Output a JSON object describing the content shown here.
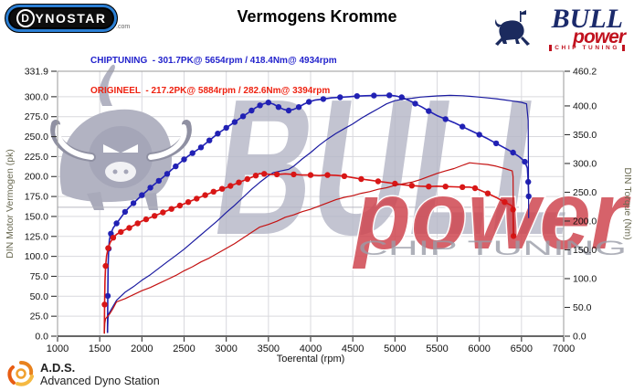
{
  "header": {
    "dynostar": {
      "d": "D",
      "rest": "YNOSTAR",
      "suffix": ".com"
    },
    "title": "Vermogens Kromme",
    "legend": [
      {
        "label": "CHIPTUNING  - 301.7PK@ 5654rpm / 418.4Nm@ 4934rpm",
        "color": "#2222cc"
      },
      {
        "label": "ORIGINEEL  - 217.2PK@ 5884rpm / 282.6Nm@ 3394rpm",
        "color": "#ee2211"
      }
    ],
    "bullpower": {
      "line1": "BULL",
      "line2": "power",
      "line3": "CHIP TUNING"
    }
  },
  "footer": {
    "ads_abbr": "A.D.S.",
    "ads_name": "Advanced Dyno Station"
  },
  "chart_data": {
    "type": "line",
    "title": "Vermogens Kromme",
    "xlabel": "Toerental (rpm)",
    "ylabel_left": "DIN Motor Vermogen (pk)",
    "ylabel_right": "DIN Torque (Nm)",
    "x_range": [
      1000,
      7000
    ],
    "x_ticks": [
      1000,
      1500,
      2000,
      2500,
      3000,
      3500,
      4000,
      4500,
      5000,
      5500,
      6000,
      6500,
      7000
    ],
    "y_left_range": [
      0,
      331.9
    ],
    "y_left_ticks": [
      0,
      25,
      50,
      75,
      100,
      125,
      150,
      175,
      200,
      225,
      250,
      275,
      300,
      331.9
    ],
    "y_right_range": [
      0,
      460.2
    ],
    "y_right_ticks": [
      0,
      50,
      100,
      150,
      200,
      250,
      300,
      350,
      400,
      460.2
    ],
    "grid": true,
    "grid_color": "#d9d9de",
    "watermarks": {
      "big_text": "BULL",
      "script_text": "power",
      "sub_text": "CHIP TUNING"
    },
    "peaks": {
      "chiptuning": {
        "power_pk": 301.7,
        "power_rpm": 5654,
        "torque_nm": 418.4,
        "torque_rpm": 4934
      },
      "origineel": {
        "power_pk": 217.2,
        "power_rpm": 5884,
        "torque_nm": 282.6,
        "torque_rpm": 3394
      }
    },
    "series": [
      {
        "name": "chiptuning-torque",
        "axis": "right",
        "color": "#2121b4",
        "width": 1.6,
        "markers": true,
        "points": [
          [
            1592,
            6
          ],
          [
            1596,
            70
          ],
          [
            1600,
            125
          ],
          [
            1606,
            152
          ],
          [
            1615,
            168
          ],
          [
            1632,
            178
          ],
          [
            1660,
            188
          ],
          [
            1700,
            196
          ],
          [
            1750,
            206
          ],
          [
            1800,
            216
          ],
          [
            1850,
            224
          ],
          [
            1900,
            231
          ],
          [
            1950,
            238
          ],
          [
            2000,
            245
          ],
          [
            2050,
            251
          ],
          [
            2100,
            258
          ],
          [
            2150,
            264
          ],
          [
            2200,
            270
          ],
          [
            2250,
            276
          ],
          [
            2300,
            282
          ],
          [
            2350,
            289
          ],
          [
            2400,
            295
          ],
          [
            2450,
            301
          ],
          [
            2500,
            307
          ],
          [
            2550,
            313
          ],
          [
            2600,
            318
          ],
          [
            2650,
            323
          ],
          [
            2700,
            328
          ],
          [
            2750,
            334
          ],
          [
            2800,
            340
          ],
          [
            2850,
            346
          ],
          [
            2900,
            352
          ],
          [
            2950,
            357
          ],
          [
            3000,
            362
          ],
          [
            3050,
            367
          ],
          [
            3100,
            372
          ],
          [
            3150,
            377
          ],
          [
            3200,
            382
          ],
          [
            3250,
            387
          ],
          [
            3300,
            392
          ],
          [
            3350,
            397
          ],
          [
            3400,
            401
          ],
          [
            3450,
            404
          ],
          [
            3500,
            406
          ],
          [
            3560,
            403
          ],
          [
            3620,
            398
          ],
          [
            3680,
            394
          ],
          [
            3740,
            392
          ],
          [
            3800,
            394
          ],
          [
            3860,
            398
          ],
          [
            3920,
            403
          ],
          [
            3980,
            407
          ],
          [
            4050,
            410
          ],
          [
            4150,
            412
          ],
          [
            4250,
            414
          ],
          [
            4350,
            415
          ],
          [
            4450,
            416
          ],
          [
            4550,
            417
          ],
          [
            4650,
            417.6
          ],
          [
            4750,
            418
          ],
          [
            4850,
            418.2
          ],
          [
            4934,
            418.4
          ],
          [
            5000,
            417.5
          ],
          [
            5080,
            415
          ],
          [
            5160,
            410
          ],
          [
            5240,
            404
          ],
          [
            5320,
            398
          ],
          [
            5400,
            391
          ],
          [
            5500,
            383
          ],
          [
            5600,
            377
          ],
          [
            5700,
            371
          ],
          [
            5800,
            364
          ],
          [
            5900,
            357
          ],
          [
            6000,
            350
          ],
          [
            6100,
            343
          ],
          [
            6200,
            335
          ],
          [
            6300,
            327
          ],
          [
            6400,
            319
          ],
          [
            6480,
            311
          ],
          [
            6540,
            303
          ],
          [
            6570,
            292
          ],
          [
            6580,
            268
          ],
          [
            6585,
            243
          ]
        ]
      },
      {
        "name": "chiptuning-power",
        "axis": "left",
        "color": "#1a1aa0",
        "width": 1.2,
        "markers": false,
        "points": [
          [
            1592,
            4
          ],
          [
            1598,
            22
          ],
          [
            1606,
            28
          ],
          [
            1650,
            36
          ],
          [
            1700,
            45
          ],
          [
            1800,
            55
          ],
          [
            1900,
            62
          ],
          [
            2000,
            70
          ],
          [
            2100,
            77
          ],
          [
            2200,
            85
          ],
          [
            2300,
            93
          ],
          [
            2400,
            101
          ],
          [
            2500,
            109
          ],
          [
            2600,
            118
          ],
          [
            2700,
            127
          ],
          [
            2800,
            136
          ],
          [
            2900,
            145
          ],
          [
            3000,
            155
          ],
          [
            3100,
            164
          ],
          [
            3200,
            174
          ],
          [
            3300,
            184
          ],
          [
            3400,
            193
          ],
          [
            3500,
            201
          ],
          [
            3560,
            205
          ],
          [
            3650,
            207
          ],
          [
            3740,
            209
          ],
          [
            3800,
            213
          ],
          [
            3900,
            222
          ],
          [
            4000,
            230
          ],
          [
            4100,
            239
          ],
          [
            4200,
            247
          ],
          [
            4300,
            254
          ],
          [
            4400,
            260
          ],
          [
            4500,
            266
          ],
          [
            4600,
            273
          ],
          [
            4700,
            279
          ],
          [
            4800,
            285
          ],
          [
            4900,
            291
          ],
          [
            5000,
            295
          ],
          [
            5100,
            297
          ],
          [
            5200,
            298
          ],
          [
            5300,
            299.5
          ],
          [
            5400,
            300.3
          ],
          [
            5500,
            301
          ],
          [
            5654,
            301.7
          ],
          [
            5800,
            301.2
          ],
          [
            5900,
            300.4
          ],
          [
            6000,
            299.5
          ],
          [
            6100,
            298.5
          ],
          [
            6200,
            297.5
          ],
          [
            6300,
            296
          ],
          [
            6400,
            294.5
          ],
          [
            6500,
            293
          ],
          [
            6560,
            291
          ],
          [
            6580,
            270
          ],
          [
            6585,
            148
          ]
        ]
      },
      {
        "name": "origineel-torque",
        "axis": "right",
        "color": "#d81616",
        "width": 1.6,
        "markers": true,
        "points": [
          [
            1555,
            5
          ],
          [
            1558,
            55
          ],
          [
            1562,
            95
          ],
          [
            1570,
            122
          ],
          [
            1582,
            140
          ],
          [
            1600,
            153
          ],
          [
            1625,
            163
          ],
          [
            1660,
            171
          ],
          [
            1700,
            177
          ],
          [
            1750,
            181
          ],
          [
            1800,
            185
          ],
          [
            1850,
            188
          ],
          [
            1900,
            192
          ],
          [
            1950,
            196
          ],
          [
            2000,
            200
          ],
          [
            2050,
            203
          ],
          [
            2100,
            206
          ],
          [
            2150,
            209
          ],
          [
            2200,
            212
          ],
          [
            2250,
            215
          ],
          [
            2300,
            218
          ],
          [
            2350,
            221
          ],
          [
            2400,
            224
          ],
          [
            2450,
            227
          ],
          [
            2500,
            230
          ],
          [
            2550,
            233
          ],
          [
            2600,
            236
          ],
          [
            2650,
            239
          ],
          [
            2700,
            242
          ],
          [
            2750,
            245
          ],
          [
            2800,
            248
          ],
          [
            2850,
            251
          ],
          [
            2900,
            253
          ],
          [
            2950,
            256
          ],
          [
            3000,
            258
          ],
          [
            3050,
            261
          ],
          [
            3100,
            264
          ],
          [
            3150,
            267
          ],
          [
            3200,
            270
          ],
          [
            3250,
            273
          ],
          [
            3300,
            276
          ],
          [
            3350,
            279
          ],
          [
            3394,
            282.6
          ],
          [
            3450,
            282
          ],
          [
            3520,
            281
          ],
          [
            3600,
            281
          ],
          [
            3700,
            282
          ],
          [
            3800,
            281
          ],
          [
            3900,
            280
          ],
          [
            4000,
            280
          ],
          [
            4100,
            279
          ],
          [
            4200,
            280
          ],
          [
            4300,
            279.5
          ],
          [
            4400,
            278
          ],
          [
            4500,
            275.5
          ],
          [
            4600,
            273
          ],
          [
            4700,
            271
          ],
          [
            4800,
            269
          ],
          [
            4900,
            267
          ],
          [
            5000,
            265
          ],
          [
            5100,
            263
          ],
          [
            5200,
            261.5
          ],
          [
            5300,
            260.5
          ],
          [
            5400,
            260
          ],
          [
            5500,
            260.5
          ],
          [
            5600,
            260
          ],
          [
            5700,
            259.5
          ],
          [
            5800,
            259
          ],
          [
            5884,
            259
          ],
          [
            5950,
            257
          ],
          [
            6000,
            254
          ],
          [
            6100,
            248
          ],
          [
            6200,
            241
          ],
          [
            6300,
            233
          ],
          [
            6380,
            227
          ],
          [
            6400,
            220
          ],
          [
            6405,
            174
          ]
        ]
      },
      {
        "name": "origineel-power",
        "axis": "left",
        "color": "#c41212",
        "width": 1.2,
        "markers": false,
        "points": [
          [
            1555,
            3
          ],
          [
            1560,
            16
          ],
          [
            1570,
            22
          ],
          [
            1620,
            28
          ],
          [
            1660,
            35
          ],
          [
            1700,
            43
          ],
          [
            1800,
            47
          ],
          [
            1900,
            52
          ],
          [
            2000,
            57
          ],
          [
            2100,
            61
          ],
          [
            2200,
            66
          ],
          [
            2300,
            71
          ],
          [
            2400,
            76
          ],
          [
            2500,
            82
          ],
          [
            2600,
            87
          ],
          [
            2700,
            93
          ],
          [
            2800,
            98
          ],
          [
            2900,
            104
          ],
          [
            3000,
            110
          ],
          [
            3100,
            116
          ],
          [
            3200,
            123
          ],
          [
            3300,
            130
          ],
          [
            3394,
            136.5
          ],
          [
            3500,
            140
          ],
          [
            3600,
            144
          ],
          [
            3700,
            149
          ],
          [
            3800,
            152
          ],
          [
            3900,
            156
          ],
          [
            4000,
            159
          ],
          [
            4100,
            163
          ],
          [
            4200,
            167
          ],
          [
            4300,
            171
          ],
          [
            4400,
            174
          ],
          [
            4500,
            176
          ],
          [
            4600,
            179
          ],
          [
            4700,
            181
          ],
          [
            4800,
            184
          ],
          [
            4900,
            186
          ],
          [
            5000,
            189
          ],
          [
            5100,
            191
          ],
          [
            5200,
            193
          ],
          [
            5300,
            196
          ],
          [
            5400,
            200
          ],
          [
            5500,
            204
          ],
          [
            5600,
            207
          ],
          [
            5700,
            210
          ],
          [
            5800,
            214
          ],
          [
            5884,
            217.2
          ],
          [
            6000,
            216
          ],
          [
            6100,
            215
          ],
          [
            6200,
            213
          ],
          [
            6300,
            210
          ],
          [
            6390,
            207
          ],
          [
            6400,
            200
          ],
          [
            6405,
            125
          ]
        ]
      }
    ]
  }
}
